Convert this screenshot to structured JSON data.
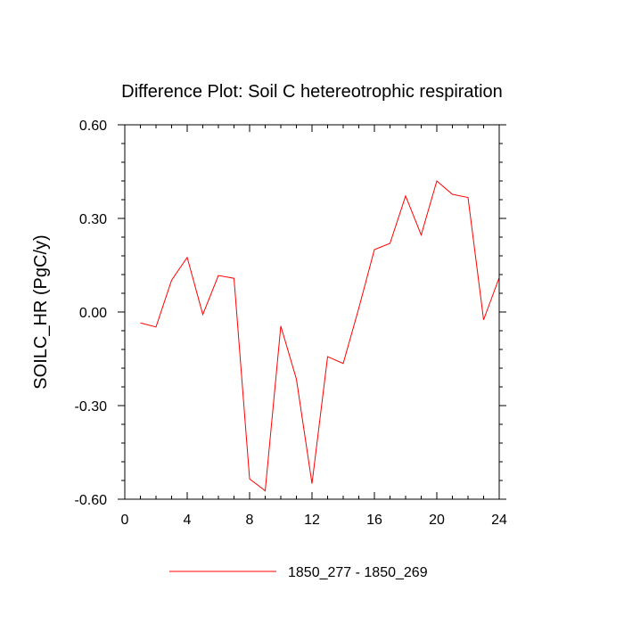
{
  "chart_data": {
    "type": "line",
    "title": "Difference Plot: Soil C hetereotrophic respiration",
    "ylabel": "SOILC_HR  (PgC/y)",
    "xlabel": "",
    "xlim": [
      0,
      24
    ],
    "ylim": [
      -0.6,
      0.6
    ],
    "x_ticks": [
      0,
      4,
      8,
      12,
      16,
      20,
      24
    ],
    "x_tick_labels": [
      "0",
      "4",
      "8",
      "12",
      "16",
      "20",
      "24"
    ],
    "y_ticks": [
      -0.6,
      -0.3,
      0.0,
      0.3,
      0.6
    ],
    "y_tick_labels": [
      "-0.60",
      "-0.30",
      "0.00",
      "0.30",
      "0.60"
    ],
    "x_minor_step": 1,
    "y_minor_step": 0.06,
    "grid": false,
    "legend_position": "bottom-center",
    "series": [
      {
        "name": "1850_277 - 1850_269",
        "color": "#ff0000",
        "x": [
          1,
          2,
          3,
          4,
          5,
          6,
          7,
          8,
          9,
          10,
          11,
          12,
          13,
          14,
          15,
          16,
          17,
          18,
          19,
          20,
          21,
          22,
          23,
          24
        ],
        "values": [
          -0.035,
          -0.048,
          0.102,
          0.175,
          -0.008,
          0.117,
          0.108,
          -0.535,
          -0.573,
          -0.045,
          -0.215,
          -0.55,
          -0.143,
          -0.165,
          0.012,
          0.2,
          0.22,
          0.372,
          0.247,
          0.42,
          0.377,
          0.367,
          -0.025,
          0.11
        ]
      }
    ]
  }
}
